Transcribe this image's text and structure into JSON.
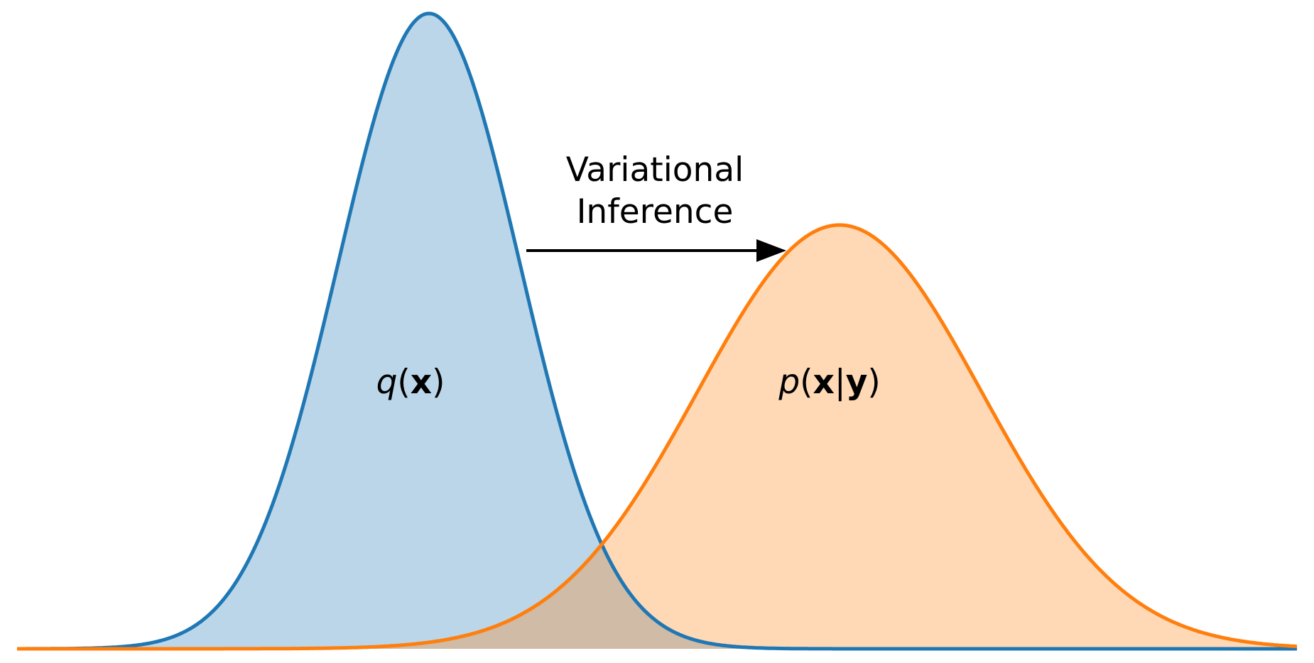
{
  "title": {
    "lines": [
      "Variational",
      "Inference"
    ]
  },
  "q_label": {
    "parts": [
      "q",
      "(",
      "x",
      ")"
    ]
  },
  "p_label": {
    "parts": [
      "p",
      "(",
      "x",
      "|",
      "y",
      ")"
    ]
  }
}
